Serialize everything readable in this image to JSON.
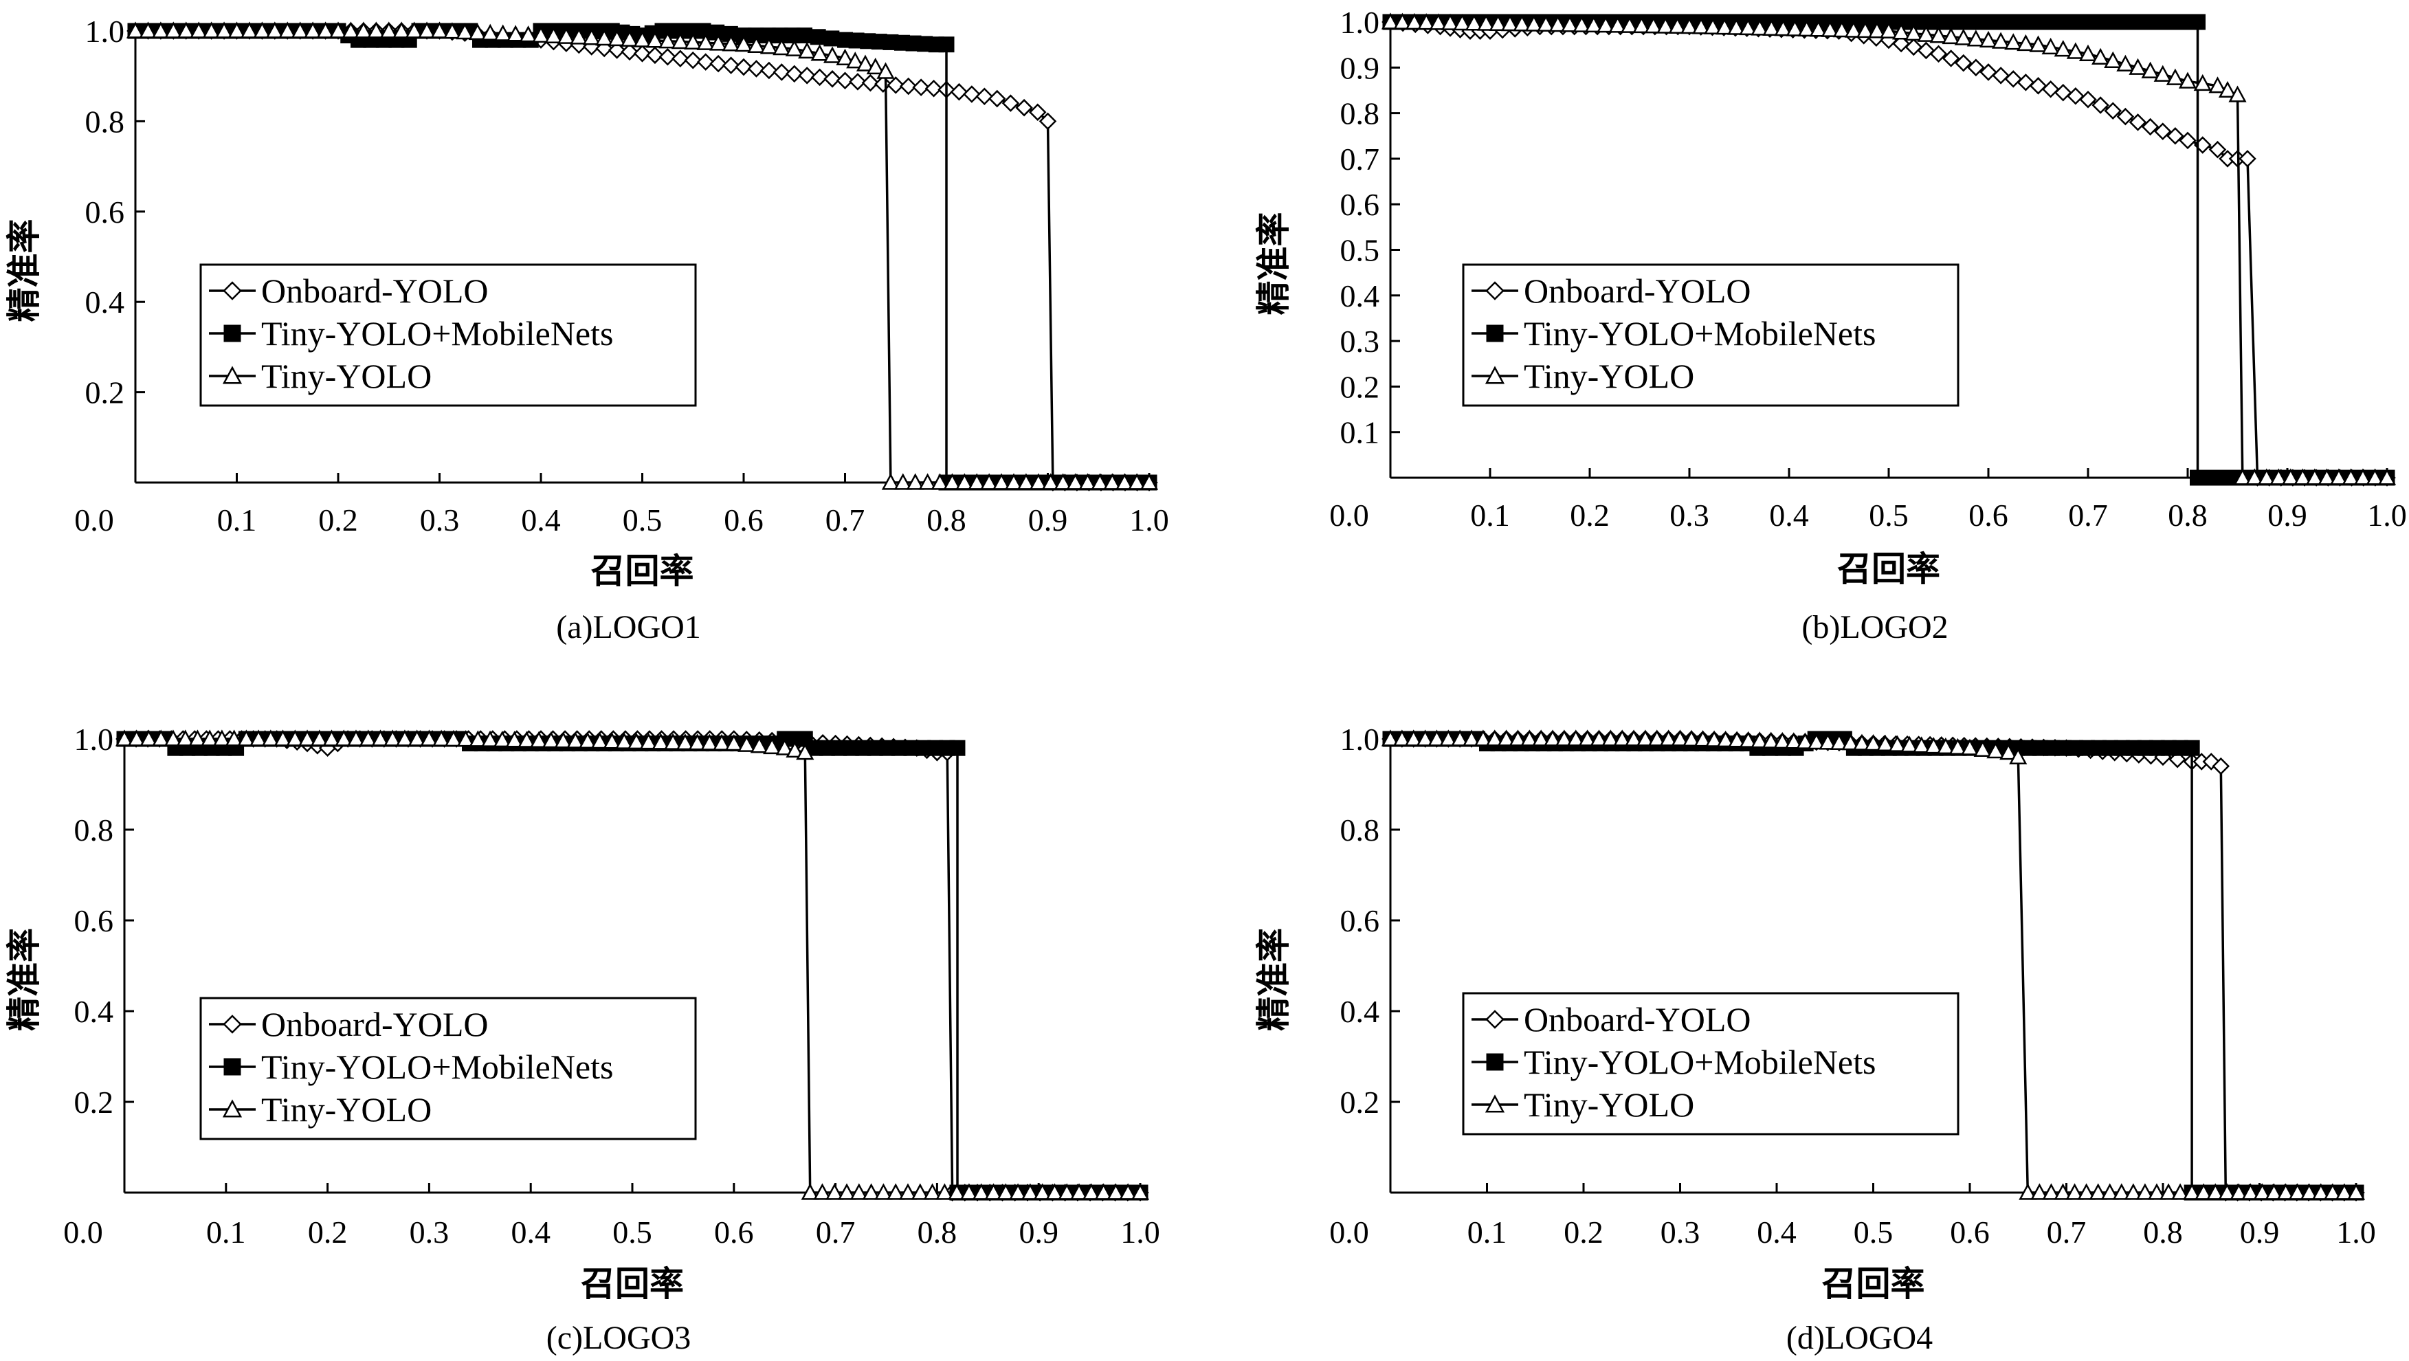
{
  "legend_items": [
    {
      "name": "Onboard-YOLO",
      "marker": "diamond-open"
    },
    {
      "name": "Tiny-YOLO+MobileNets",
      "marker": "square-filled"
    },
    {
      "name": "Tiny-YOLO",
      "marker": "triangle-open"
    }
  ],
  "chart_data": [
    {
      "type": "line",
      "caption": "(a)LOGO1",
      "xlabel": "召回率",
      "ylabel": "精准率",
      "xlim": [
        0,
        1
      ],
      "ylim": [
        0,
        1
      ],
      "x_ticks": [
        "0.0",
        "0.1",
        "0.2",
        "0.3",
        "0.4",
        "0.5",
        "0.6",
        "0.7",
        "0.8",
        "0.9",
        "1.0"
      ],
      "y_ticks": [
        "0.2",
        "0.4",
        "0.6",
        "0.8",
        "1.0"
      ],
      "legend_position": "center-left",
      "series": [
        {
          "name": "Onboard-YOLO",
          "points": [
            [
              0,
              1
            ],
            [
              0.1,
              1
            ],
            [
              0.2,
              1
            ],
            [
              0.3,
              1
            ],
            [
              0.35,
              0.99
            ],
            [
              0.4,
              0.98
            ],
            [
              0.5,
              0.95
            ],
            [
              0.6,
              0.92
            ],
            [
              0.7,
              0.89
            ],
            [
              0.75,
              0.88
            ],
            [
              0.8,
              0.87
            ],
            [
              0.85,
              0.85
            ],
            [
              0.89,
              0.82
            ],
            [
              0.9,
              0.8
            ],
            [
              0.905,
              0
            ],
            [
              1,
              0
            ]
          ]
        },
        {
          "name": "Tiny-YOLO+MobileNets",
          "points": [
            [
              0,
              1
            ],
            [
              0.2,
              1
            ],
            [
              0.22,
              0.98
            ],
            [
              0.27,
              0.98
            ],
            [
              0.28,
              1
            ],
            [
              0.33,
              1
            ],
            [
              0.34,
              0.98
            ],
            [
              0.39,
              0.98
            ],
            [
              0.4,
              1
            ],
            [
              0.47,
              1
            ],
            [
              0.5,
              0.99
            ],
            [
              0.52,
              1
            ],
            [
              0.56,
              1
            ],
            [
              0.6,
              0.99
            ],
            [
              0.66,
              0.99
            ],
            [
              0.7,
              0.98
            ],
            [
              0.79,
              0.97
            ],
            [
              0.8,
              0.97
            ],
            [
              0.8,
              0
            ],
            [
              1,
              0
            ]
          ]
        },
        {
          "name": "Tiny-YOLO",
          "points": [
            [
              0,
              1
            ],
            [
              0.1,
              1
            ],
            [
              0.2,
              1
            ],
            [
              0.3,
              1
            ],
            [
              0.4,
              0.99
            ],
            [
              0.5,
              0.98
            ],
            [
              0.6,
              0.97
            ],
            [
              0.65,
              0.96
            ],
            [
              0.7,
              0.94
            ],
            [
              0.73,
              0.92
            ],
            [
              0.74,
              0.91
            ],
            [
              0.745,
              0
            ],
            [
              1,
              0
            ]
          ]
        }
      ]
    },
    {
      "type": "line",
      "caption": "(b)LOGO2",
      "xlabel": "召回率",
      "ylabel": "精准率",
      "xlim": [
        0,
        1
      ],
      "ylim": [
        0,
        1
      ],
      "x_ticks": [
        "0.0",
        "0.1",
        "0.2",
        "0.3",
        "0.4",
        "0.5",
        "0.6",
        "0.7",
        "0.8",
        "0.9",
        "1.0"
      ],
      "y_ticks": [
        "0.1",
        "0.2",
        "0.3",
        "0.4",
        "0.5",
        "0.6",
        "0.7",
        "0.8",
        "0.9",
        "1.0"
      ],
      "legend_position": "center-left",
      "series": [
        {
          "name": "Onboard-YOLO",
          "points": [
            [
              0,
              1
            ],
            [
              0.05,
              0.99
            ],
            [
              0.08,
              0.98
            ],
            [
              0.1,
              0.98
            ],
            [
              0.15,
              0.99
            ],
            [
              0.3,
              0.99
            ],
            [
              0.45,
              0.98
            ],
            [
              0.5,
              0.96
            ],
            [
              0.55,
              0.93
            ],
            [
              0.6,
              0.89
            ],
            [
              0.65,
              0.86
            ],
            [
              0.7,
              0.83
            ],
            [
              0.75,
              0.78
            ],
            [
              0.8,
              0.74
            ],
            [
              0.83,
              0.72
            ],
            [
              0.84,
              0.7
            ],
            [
              0.86,
              0.7
            ],
            [
              0.87,
              0
            ],
            [
              1,
              0
            ]
          ]
        },
        {
          "name": "Tiny-YOLO+MobileNets",
          "points": [
            [
              0,
              1
            ],
            [
              0.81,
              1
            ],
            [
              0.81,
              0
            ],
            [
              1,
              0
            ]
          ]
        },
        {
          "name": "Tiny-YOLO",
          "points": [
            [
              0,
              1
            ],
            [
              0.3,
              0.99
            ],
            [
              0.5,
              0.98
            ],
            [
              0.6,
              0.96
            ],
            [
              0.65,
              0.95
            ],
            [
              0.7,
              0.93
            ],
            [
              0.75,
              0.9
            ],
            [
              0.8,
              0.87
            ],
            [
              0.83,
              0.86
            ],
            [
              0.84,
              0.85
            ],
            [
              0.85,
              0.84
            ],
            [
              0.855,
              0
            ],
            [
              1,
              0
            ]
          ]
        }
      ]
    },
    {
      "type": "line",
      "caption": "(c)LOGO3",
      "xlabel": "召回率",
      "ylabel": "精准率",
      "xlim": [
        0,
        1
      ],
      "ylim": [
        0,
        1
      ],
      "x_ticks": [
        "0.0",
        "0.1",
        "0.2",
        "0.3",
        "0.4",
        "0.5",
        "0.6",
        "0.7",
        "0.8",
        "0.9",
        "1.0"
      ],
      "y_ticks": [
        "0.2",
        "0.4",
        "0.6",
        "0.8",
        "1.0"
      ],
      "legend_position": "center-left",
      "series": [
        {
          "name": "Onboard-YOLO",
          "points": [
            [
              0,
              1
            ],
            [
              0.15,
              1
            ],
            [
              0.18,
              0.99
            ],
            [
              0.2,
              0.98
            ],
            [
              0.22,
              1
            ],
            [
              0.6,
              1
            ],
            [
              0.7,
              0.99
            ],
            [
              0.78,
              0.98
            ],
            [
              0.8,
              0.97
            ],
            [
              0.81,
              0.97
            ],
            [
              0.815,
              0
            ],
            [
              1,
              0
            ]
          ]
        },
        {
          "name": "Tiny-YOLO+MobileNets",
          "points": [
            [
              0,
              1
            ],
            [
              0.04,
              1
            ],
            [
              0.05,
              0.98
            ],
            [
              0.11,
              0.98
            ],
            [
              0.12,
              1
            ],
            [
              0.33,
              1
            ],
            [
              0.34,
              0.99
            ],
            [
              0.64,
              0.99
            ],
            [
              0.65,
              1
            ],
            [
              0.67,
              1
            ],
            [
              0.68,
              0.98
            ],
            [
              0.81,
              0.98
            ],
            [
              0.82,
              0.98
            ],
            [
              0.82,
              0
            ],
            [
              1,
              0
            ]
          ]
        },
        {
          "name": "Tiny-YOLO",
          "points": [
            [
              0,
              1
            ],
            [
              0.3,
              1
            ],
            [
              0.6,
              0.99
            ],
            [
              0.65,
              0.98
            ],
            [
              0.67,
              0.97
            ],
            [
              0.675,
              0
            ],
            [
              1,
              0
            ]
          ]
        }
      ]
    },
    {
      "type": "line",
      "caption": "(d)LOGO4",
      "xlabel": "召回率",
      "ylabel": "精准率",
      "xlim": [
        0,
        1
      ],
      "ylim": [
        0,
        1
      ],
      "x_ticks": [
        "0.0",
        "0.1",
        "0.2",
        "0.3",
        "0.4",
        "0.5",
        "0.6",
        "0.7",
        "0.8",
        "0.9",
        "1.0"
      ],
      "y_ticks": [
        "0.2",
        "0.4",
        "0.6",
        "0.8",
        "1.0"
      ],
      "legend_position": "center-left",
      "series": [
        {
          "name": "Onboard-YOLO",
          "points": [
            [
              0,
              1
            ],
            [
              0.3,
              1
            ],
            [
              0.5,
              0.99
            ],
            [
              0.7,
              0.98
            ],
            [
              0.75,
              0.97
            ],
            [
              0.8,
              0.96
            ],
            [
              0.83,
              0.95
            ],
            [
              0.85,
              0.95
            ],
            [
              0.86,
              0.94
            ],
            [
              0.865,
              0
            ],
            [
              1,
              0
            ]
          ]
        },
        {
          "name": "Tiny-YOLO+MobileNets",
          "points": [
            [
              0,
              1
            ],
            [
              0.09,
              1
            ],
            [
              0.1,
              0.99
            ],
            [
              0.37,
              0.99
            ],
            [
              0.38,
              0.98
            ],
            [
              0.42,
              0.98
            ],
            [
              0.44,
              1
            ],
            [
              0.47,
              1
            ],
            [
              0.48,
              0.98
            ],
            [
              0.83,
              0.98
            ],
            [
              0.83,
              0
            ],
            [
              1,
              0
            ]
          ]
        },
        {
          "name": "Tiny-YOLO",
          "points": [
            [
              0,
              1
            ],
            [
              0.3,
              1
            ],
            [
              0.5,
              0.99
            ],
            [
              0.6,
              0.98
            ],
            [
              0.64,
              0.97
            ],
            [
              0.65,
              0.96
            ],
            [
              0.66,
              0
            ],
            [
              1,
              0
            ]
          ]
        }
      ]
    }
  ]
}
